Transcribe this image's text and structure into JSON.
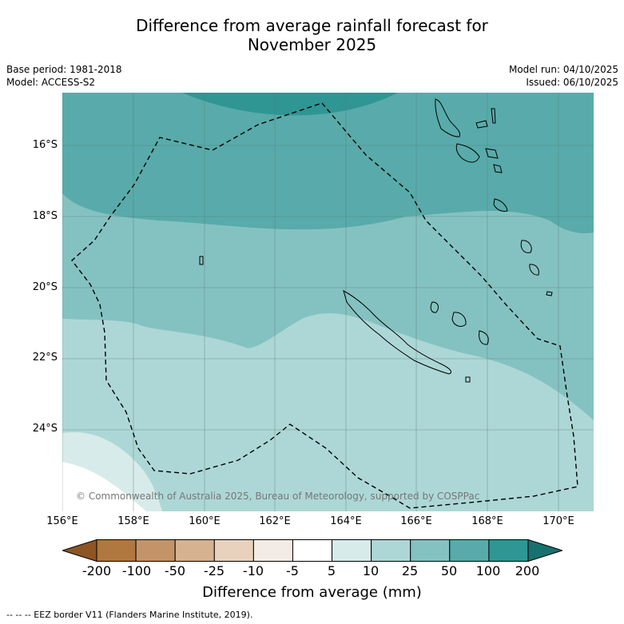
{
  "title_line1": "Difference from average rainfall forecast for",
  "title_line2": "November 2025",
  "base_period": "Base period: 1981-2018",
  "model": "Model: ACCESS-S2",
  "model_run": "Model run: 04/10/2025",
  "issued": "Issued: 06/10/2025",
  "copyright": "© Commonwealth of Australia 2025, Bureau of Meteorology, supported by COSPPac",
  "lat_labels": [
    "16°S",
    "18°S",
    "20°S",
    "22°S",
    "24°S"
  ],
  "lon_labels": [
    "156°E",
    "158°E",
    "160°E",
    "162°E",
    "164°E",
    "166°E",
    "168°E",
    "170°E"
  ],
  "colorbar": {
    "ticks": [
      "-200",
      "-100",
      "-50",
      "-25",
      "-10",
      "-5",
      "5",
      "10",
      "25",
      "50",
      "100",
      "200"
    ],
    "colors": [
      "#8d5524",
      "#b0773f",
      "#c49468",
      "#d6b291",
      "#e8d2bd",
      "#f3ece6",
      "#ffffff",
      "#d7ebea",
      "#add7d6",
      "#84c2c1",
      "#58abaa",
      "#2f9694",
      "#17716f"
    ],
    "label": "Difference from average (mm)"
  },
  "map_layers": [
    {
      "category": "50 to 100",
      "color": "#58abaa"
    },
    {
      "category": "100 to 200",
      "color": "#2f9694"
    },
    {
      "category": "25 to 50",
      "color": "#84c2c1"
    },
    {
      "category": "10 to 25",
      "color": "#add7d6"
    },
    {
      "category": "5 to 10",
      "color": "#d7ebea"
    },
    {
      "category": "-5 to 5",
      "color": "#ffffff"
    }
  ],
  "legend_footer": "--  --  -- EEZ border V11 (Flanders Marine Institute, 2019)."
}
